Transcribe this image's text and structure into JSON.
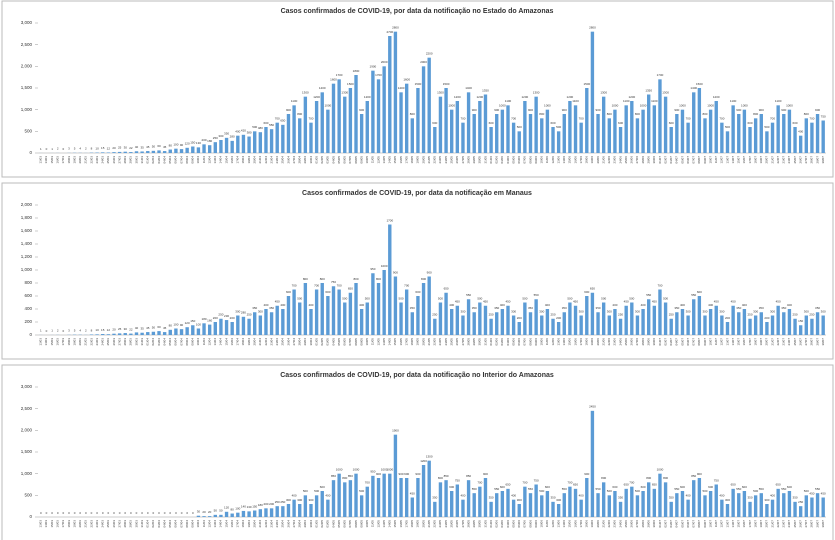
{
  "chart_data": [
    {
      "type": "bar",
      "title": "Casos confirmados de COVID-19, por data da notificação no Estado do Amazonas",
      "color": "#5b9bd5",
      "grid": false,
      "ylim": [
        0,
        3000
      ],
      "yticks": [
        0,
        500,
        {
          "value": 1000,
          "label": "1,000"
        },
        {
          "value": 1500,
          "label": "1,500"
        },
        {
          "value": 2000,
          "label": "2,000"
        },
        {
          "value": 2500,
          "label": "2,500"
        },
        {
          "value": 3000,
          "label": "3,000"
        }
      ],
      "categories": [
        "13/03",
        "14/03",
        "15/03",
        "16/03",
        "17/03",
        "18/03",
        "19/03",
        "20/03",
        "21/03",
        "22/03",
        "23/03",
        "24/03",
        "25/03",
        "26/03",
        "27/03",
        "28/03",
        "29/03",
        "30/03",
        "31/03",
        "01/04",
        "02/04",
        "03/04",
        "04/04",
        "05/04",
        "06/04",
        "07/04",
        "08/04",
        "09/04",
        "10/04",
        "11/04",
        "12/04",
        "13/04",
        "14/04",
        "15/04",
        "16/04",
        "17/04",
        "18/04",
        "19/04",
        "20/04",
        "21/04",
        "22/04",
        "23/04",
        "24/04",
        "25/04",
        "26/04",
        "27/04",
        "28/04",
        "29/04",
        "30/04",
        "01/05",
        "02/05",
        "03/05",
        "04/05",
        "05/05",
        "06/05",
        "07/05",
        "08/05",
        "09/05",
        "10/05",
        "11/05",
        "12/05",
        "13/05",
        "14/05",
        "15/05",
        "16/05",
        "17/05",
        "18/05",
        "19/05",
        "20/05",
        "21/05",
        "22/05",
        "23/05",
        "24/05",
        "25/05",
        "26/05",
        "27/05",
        "28/05",
        "29/05",
        "30/05",
        "31/05",
        "01/06",
        "02/06",
        "03/06",
        "04/06",
        "05/06",
        "06/06",
        "07/06",
        "08/06",
        "09/06",
        "10/06",
        "11/06",
        "12/06",
        "13/06",
        "14/06",
        "15/06",
        "16/06",
        "17/06",
        "18/06",
        "19/06",
        "20/06",
        "21/06",
        "22/06",
        "23/06",
        "24/06",
        "25/06",
        "26/06",
        "27/06",
        "28/06",
        "29/06",
        "30/06",
        "01/07",
        "02/07",
        "03/07",
        "04/07",
        "05/07",
        "06/07",
        "07/07",
        "08/07",
        "09/07",
        "10/07",
        "11/07",
        "12/07",
        "13/07",
        "14/07",
        "15/07",
        "16/07",
        "17/07",
        "18/07",
        "19/07",
        "20/07",
        "21/07",
        "22/07",
        "23/07",
        "24/07",
        "25/07",
        "26/07",
        "27/07",
        "28/07",
        "29/07",
        "30/07"
      ],
      "values": [
        1,
        0,
        1,
        2,
        0,
        3,
        5,
        4,
        2,
        8,
        10,
        15,
        12,
        20,
        25,
        30,
        22,
        40,
        35,
        45,
        50,
        60,
        45,
        80,
        100,
        90,
        120,
        150,
        130,
        200,
        180,
        250,
        300,
        350,
        280,
        400,
        420,
        380,
        500,
        480,
        600,
        550,
        700,
        650,
        900,
        1100,
        800,
        1300,
        700,
        1200,
        1400,
        1000,
        1600,
        1700,
        1300,
        1500,
        1800,
        900,
        1200,
        1900,
        1700,
        2000,
        2700,
        2800,
        1400,
        1600,
        800,
        1500,
        2000,
        2200,
        600,
        1300,
        1500,
        1000,
        1200,
        700,
        1400,
        900,
        1200,
        1350,
        600,
        900,
        1000,
        1100,
        700,
        500,
        1200,
        900,
        1300,
        800,
        1000,
        600,
        500,
        900,
        1200,
        1100,
        700,
        1500,
        2800,
        900,
        1300,
        800,
        1000,
        600,
        1100,
        1200,
        800,
        1000,
        1350,
        1100,
        1700,
        1300,
        600,
        900,
        1000,
        700,
        1400,
        1500,
        800,
        1000,
        1200,
        700,
        500,
        1100,
        900,
        1000,
        600,
        800,
        900,
        500,
        700,
        1100,
        900,
        1000,
        600,
        400,
        800,
        700,
        900,
        750
      ]
    },
    {
      "type": "bar",
      "title": "Casos confirmados de COVID-19, por data da notificação em Manaus",
      "color": "#5b9bd5",
      "grid": false,
      "ylim": [
        0,
        2000
      ],
      "yticks": [
        0,
        200,
        400,
        600,
        800,
        {
          "value": 1000,
          "label": "1,000"
        },
        {
          "value": 1200,
          "label": "1,200"
        },
        {
          "value": 1400,
          "label": "1,400"
        },
        {
          "value": 1600,
          "label": "1,600"
        },
        {
          "value": 1800,
          "label": "1,800"
        },
        {
          "value": 2000,
          "label": "2,000"
        }
      ],
      "categories": [
        "13/03",
        "14/03",
        "15/03",
        "16/03",
        "17/03",
        "18/03",
        "19/03",
        "20/03",
        "21/03",
        "22/03",
        "23/03",
        "24/03",
        "25/03",
        "26/03",
        "27/03",
        "28/03",
        "29/03",
        "30/03",
        "31/03",
        "01/04",
        "02/04",
        "03/04",
        "04/04",
        "05/04",
        "06/04",
        "07/04",
        "08/04",
        "09/04",
        "10/04",
        "11/04",
        "12/04",
        "13/04",
        "14/04",
        "15/04",
        "16/04",
        "17/04",
        "18/04",
        "19/04",
        "20/04",
        "21/04",
        "22/04",
        "23/04",
        "24/04",
        "25/04",
        "26/04",
        "27/04",
        "28/04",
        "29/04",
        "30/04",
        "01/05",
        "02/05",
        "03/05",
        "04/05",
        "05/05",
        "06/05",
        "07/05",
        "08/05",
        "09/05",
        "10/05",
        "11/05",
        "12/05",
        "13/05",
        "14/05",
        "15/05",
        "16/05",
        "17/05",
        "18/05",
        "19/05",
        "20/05",
        "21/05",
        "22/05",
        "23/05",
        "24/05",
        "25/05",
        "26/05",
        "27/05",
        "28/05",
        "29/05",
        "30/05",
        "31/05",
        "01/06",
        "02/06",
        "03/06",
        "04/06",
        "05/06",
        "06/06",
        "07/06",
        "08/06",
        "09/06",
        "10/06",
        "11/06",
        "12/06",
        "13/06",
        "14/06",
        "15/06",
        "16/06",
        "17/06",
        "18/06",
        "19/06",
        "20/06",
        "21/06",
        "22/06",
        "23/06",
        "24/06",
        "25/06",
        "26/06",
        "27/06",
        "28/06",
        "29/06",
        "30/06",
        "01/07",
        "02/07",
        "03/07",
        "04/07",
        "05/07",
        "06/07",
        "07/07",
        "08/07",
        "09/07",
        "10/07",
        "11/07",
        "12/07",
        "13/07",
        "14/07",
        "15/07",
        "16/07",
        "17/07",
        "18/07",
        "19/07",
        "20/07",
        "21/07",
        "22/07",
        "23/07",
        "24/07",
        "25/07",
        "26/07",
        "27/07",
        "28/07",
        "29/07",
        "30/07"
      ],
      "values": [
        1,
        0,
        1,
        2,
        0,
        3,
        5,
        4,
        2,
        8,
        10,
        15,
        12,
        20,
        25,
        30,
        22,
        40,
        35,
        45,
        50,
        60,
        45,
        80,
        100,
        90,
        120,
        150,
        100,
        180,
        160,
        200,
        250,
        230,
        200,
        300,
        280,
        250,
        350,
        300,
        400,
        350,
        450,
        400,
        600,
        700,
        500,
        800,
        400,
        700,
        800,
        600,
        750,
        700,
        500,
        650,
        800,
        400,
        500,
        950,
        800,
        1000,
        1700,
        900,
        500,
        700,
        350,
        600,
        800,
        900,
        250,
        500,
        650,
        400,
        450,
        300,
        550,
        350,
        500,
        450,
        250,
        350,
        400,
        450,
        300,
        200,
        500,
        350,
        550,
        300,
        400,
        250,
        200,
        350,
        500,
        450,
        300,
        600,
        650,
        350,
        500,
        300,
        400,
        250,
        450,
        500,
        300,
        400,
        550,
        450,
        700,
        500,
        250,
        350,
        400,
        300,
        550,
        600,
        300,
        400,
        450,
        300,
        200,
        450,
        350,
        400,
        250,
        300,
        350,
        200,
        300,
        450,
        350,
        400,
        250,
        150,
        300,
        250,
        350,
        300
      ]
    },
    {
      "type": "bar",
      "title": "Casos confirmados de COVID-19, por data da notificação no  Interior do Amazonas",
      "color": "#5b9bd5",
      "grid": false,
      "ylim": [
        0,
        3000
      ],
      "yticks": [
        0,
        500,
        {
          "value": 1000,
          "label": "1,000"
        },
        {
          "value": 1500,
          "label": "1,500"
        },
        {
          "value": 2000,
          "label": "2,000"
        },
        {
          "value": 2500,
          "label": "2,500"
        },
        {
          "value": 3000,
          "label": "3,000"
        }
      ],
      "categories": [
        "13/03",
        "14/03",
        "15/03",
        "16/03",
        "17/03",
        "18/03",
        "19/03",
        "20/03",
        "21/03",
        "22/03",
        "23/03",
        "24/03",
        "25/03",
        "26/03",
        "27/03",
        "28/03",
        "29/03",
        "30/03",
        "31/03",
        "01/04",
        "02/04",
        "03/04",
        "04/04",
        "05/04",
        "06/04",
        "07/04",
        "08/04",
        "09/04",
        "10/04",
        "11/04",
        "12/04",
        "13/04",
        "14/04",
        "15/04",
        "16/04",
        "17/04",
        "18/04",
        "19/04",
        "20/04",
        "21/04",
        "22/04",
        "23/04",
        "24/04",
        "25/04",
        "26/04",
        "27/04",
        "28/04",
        "29/04",
        "30/04",
        "01/05",
        "02/05",
        "03/05",
        "04/05",
        "05/05",
        "06/05",
        "07/05",
        "08/05",
        "09/05",
        "10/05",
        "11/05",
        "12/05",
        "13/05",
        "14/05",
        "15/05",
        "16/05",
        "17/05",
        "18/05",
        "19/05",
        "20/05",
        "21/05",
        "22/05",
        "23/05",
        "24/05",
        "25/05",
        "26/05",
        "27/05",
        "28/05",
        "29/05",
        "30/05",
        "31/05",
        "01/06",
        "02/06",
        "03/06",
        "04/06",
        "05/06",
        "06/06",
        "07/06",
        "08/06",
        "09/06",
        "10/06",
        "11/06",
        "12/06",
        "13/06",
        "14/06",
        "15/06",
        "16/06",
        "17/06",
        "18/06",
        "19/06",
        "20/06",
        "21/06",
        "22/06",
        "23/06",
        "24/06",
        "25/06",
        "26/06",
        "27/06",
        "28/06",
        "29/06",
        "30/06",
        "01/07",
        "02/07",
        "03/07",
        "04/07",
        "05/07",
        "06/07",
        "07/07",
        "08/07",
        "09/07",
        "10/07",
        "11/07",
        "12/07",
        "13/07",
        "14/07",
        "15/07",
        "16/07",
        "17/07",
        "18/07",
        "19/07",
        "20/07",
        "21/07",
        "22/07",
        "23/07",
        "24/07",
        "25/07",
        "26/07",
        "27/07",
        "28/07",
        "29/07",
        "30/07"
      ],
      "values": [
        0,
        0,
        0,
        0,
        0,
        0,
        0,
        0,
        0,
        0,
        0,
        0,
        0,
        0,
        0,
        0,
        0,
        0,
        0,
        0,
        0,
        0,
        0,
        0,
        0,
        0,
        0,
        0,
        30,
        20,
        20,
        50,
        50,
        120,
        80,
        100,
        140,
        130,
        150,
        180,
        200,
        200,
        250,
        250,
        300,
        400,
        300,
        500,
        300,
        500,
        600,
        400,
        850,
        1000,
        800,
        850,
        1000,
        500,
        700,
        950,
        900,
        1000,
        1000,
        1900,
        900,
        900,
        450,
        900,
        1200,
        1300,
        350,
        800,
        850,
        600,
        750,
        400,
        850,
        550,
        700,
        900,
        350,
        550,
        600,
        650,
        400,
        300,
        700,
        550,
        750,
        500,
        600,
        350,
        300,
        550,
        700,
        650,
        400,
        900,
        2450,
        550,
        800,
        500,
        600,
        350,
        650,
        700,
        500,
        600,
        800,
        650,
        1000,
        800,
        350,
        550,
        600,
        400,
        850,
        900,
        500,
        600,
        750,
        400,
        300,
        650,
        550,
        600,
        350,
        500,
        550,
        300,
        400,
        650,
        550,
        600,
        350,
        250,
        500,
        450,
        550,
        450
      ]
    }
  ]
}
